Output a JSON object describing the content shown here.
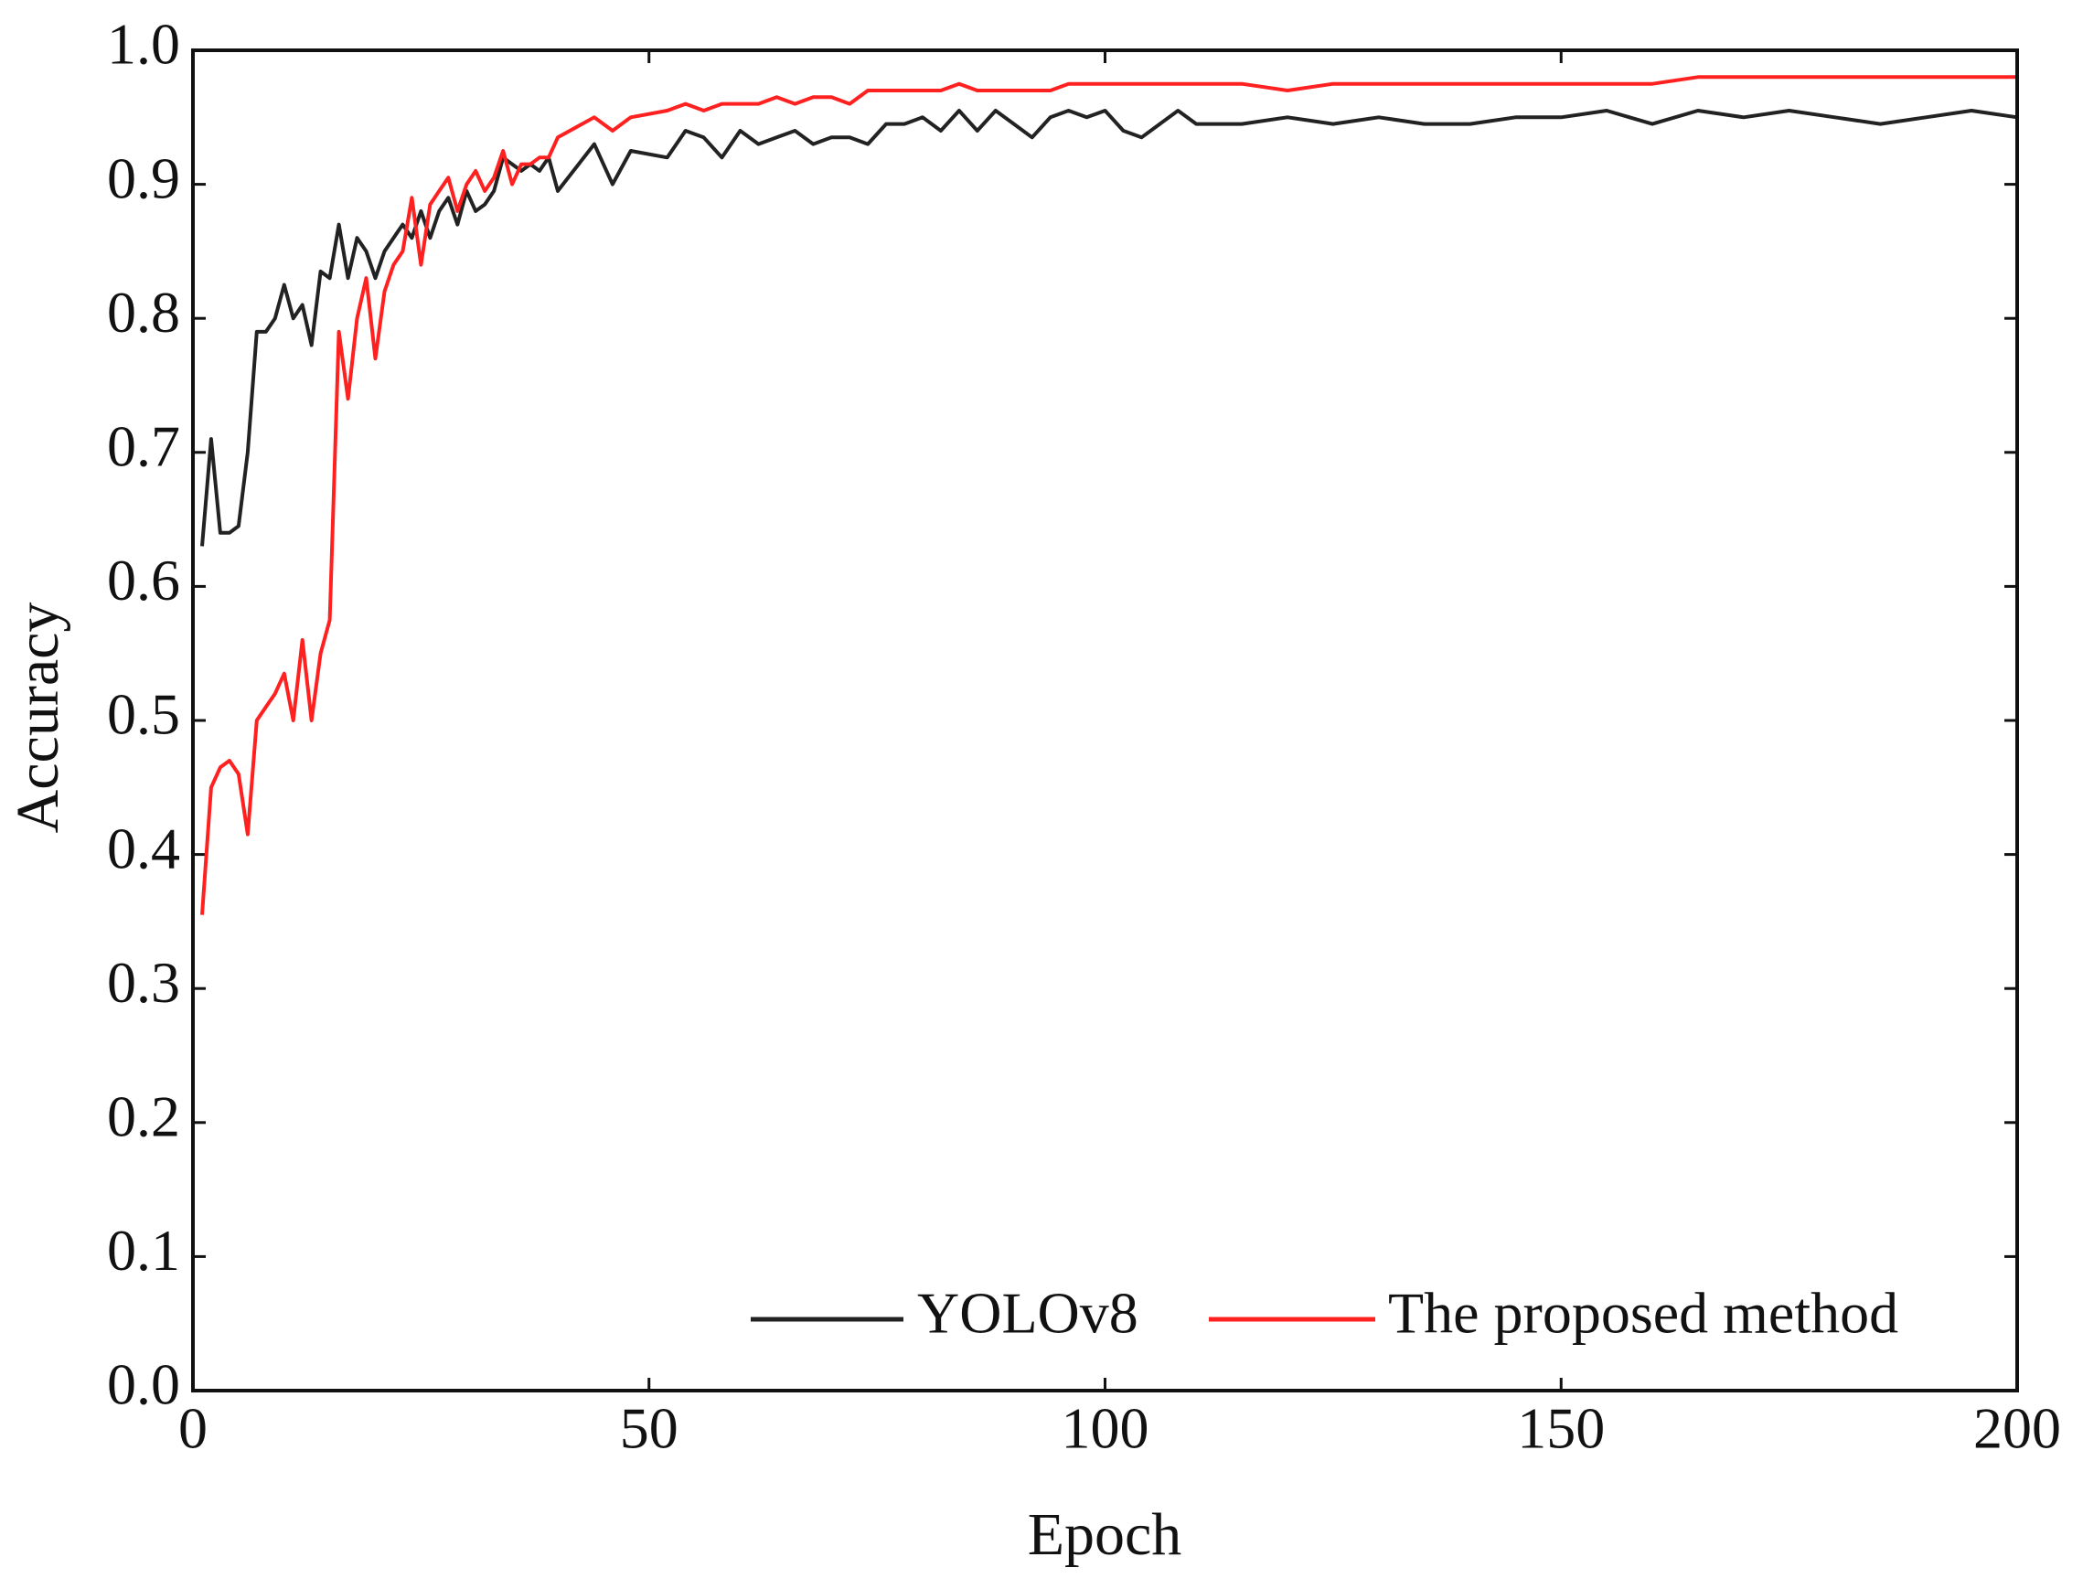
{
  "chart_data": {
    "type": "line",
    "xlabel": "Epoch",
    "ylabel": "Accuracy",
    "x": [
      1,
      2,
      3,
      4,
      5,
      6,
      7,
      8,
      9,
      10,
      11,
      12,
      13,
      14,
      15,
      16,
      17,
      18,
      19,
      20,
      21,
      22,
      23,
      24,
      25,
      26,
      27,
      28,
      29,
      30,
      31,
      32,
      33,
      34,
      35,
      36,
      37,
      38,
      39,
      40,
      44,
      46,
      48,
      52,
      54,
      56,
      58,
      60,
      62,
      64,
      66,
      68,
      70,
      72,
      74,
      76,
      78,
      80,
      82,
      84,
      86,
      88,
      90,
      92,
      94,
      96,
      98,
      100,
      102,
      104,
      106,
      108,
      110,
      115,
      120,
      125,
      130,
      135,
      140,
      145,
      150,
      155,
      160,
      165,
      170,
      175,
      180,
      185,
      190,
      195,
      200
    ],
    "series": [
      {
        "name": "YOLOv8",
        "color": "#222222",
        "values": [
          0.63,
          0.71,
          0.64,
          0.64,
          0.645,
          0.7,
          0.79,
          0.79,
          0.8,
          0.825,
          0.8,
          0.81,
          0.78,
          0.835,
          0.83,
          0.87,
          0.83,
          0.86,
          0.85,
          0.83,
          0.85,
          0.86,
          0.87,
          0.86,
          0.88,
          0.86,
          0.88,
          0.89,
          0.87,
          0.895,
          0.88,
          0.885,
          0.895,
          0.92,
          0.915,
          0.91,
          0.915,
          0.91,
          0.92,
          0.895,
          0.93,
          0.9,
          0.925,
          0.92,
          0.94,
          0.935,
          0.92,
          0.94,
          0.93,
          0.935,
          0.94,
          0.93,
          0.935,
          0.935,
          0.93,
          0.945,
          0.945,
          0.95,
          0.94,
          0.955,
          0.94,
          0.955,
          0.945,
          0.935,
          0.95,
          0.955,
          0.95,
          0.955,
          0.94,
          0.935,
          0.945,
          0.955,
          0.945,
          0.945,
          0.95,
          0.945,
          0.95,
          0.945,
          0.945,
          0.95,
          0.95,
          0.955,
          0.945,
          0.955,
          0.95,
          0.955,
          0.95,
          0.945,
          0.95,
          0.955,
          0.95
        ]
      },
      {
        "name": "The proposed method",
        "color": "#ff2020",
        "values": [
          0.355,
          0.45,
          0.465,
          0.47,
          0.46,
          0.415,
          0.5,
          0.51,
          0.52,
          0.535,
          0.5,
          0.56,
          0.5,
          0.55,
          0.575,
          0.79,
          0.74,
          0.8,
          0.83,
          0.77,
          0.82,
          0.84,
          0.85,
          0.89,
          0.84,
          0.885,
          0.895,
          0.905,
          0.88,
          0.9,
          0.91,
          0.895,
          0.905,
          0.925,
          0.9,
          0.915,
          0.915,
          0.92,
          0.92,
          0.935,
          0.95,
          0.94,
          0.95,
          0.955,
          0.96,
          0.955,
          0.96,
          0.96,
          0.96,
          0.965,
          0.96,
          0.965,
          0.965,
          0.96,
          0.97,
          0.97,
          0.97,
          0.97,
          0.97,
          0.975,
          0.97,
          0.97,
          0.97,
          0.97,
          0.97,
          0.975,
          0.975,
          0.975,
          0.975,
          0.975,
          0.975,
          0.975,
          0.975,
          0.975,
          0.97,
          0.975,
          0.975,
          0.975,
          0.975,
          0.975,
          0.975,
          0.975,
          0.975,
          0.98,
          0.98,
          0.98,
          0.98,
          0.98,
          0.98,
          0.98,
          0.98
        ]
      }
    ],
    "xlim": [
      0,
      200
    ],
    "xticks": [
      0,
      50,
      100,
      150,
      200
    ],
    "ylim": [
      0,
      1.0
    ],
    "yticks": [
      {
        "value": 0,
        "label": "0.0"
      },
      0.1,
      0.2,
      0.3,
      0.4,
      0.5,
      0.6,
      0.7,
      0.8,
      0.9,
      {
        "value": 1.0,
        "label": "1.0"
      }
    ],
    "legend": "lower right",
    "grid": false
  }
}
